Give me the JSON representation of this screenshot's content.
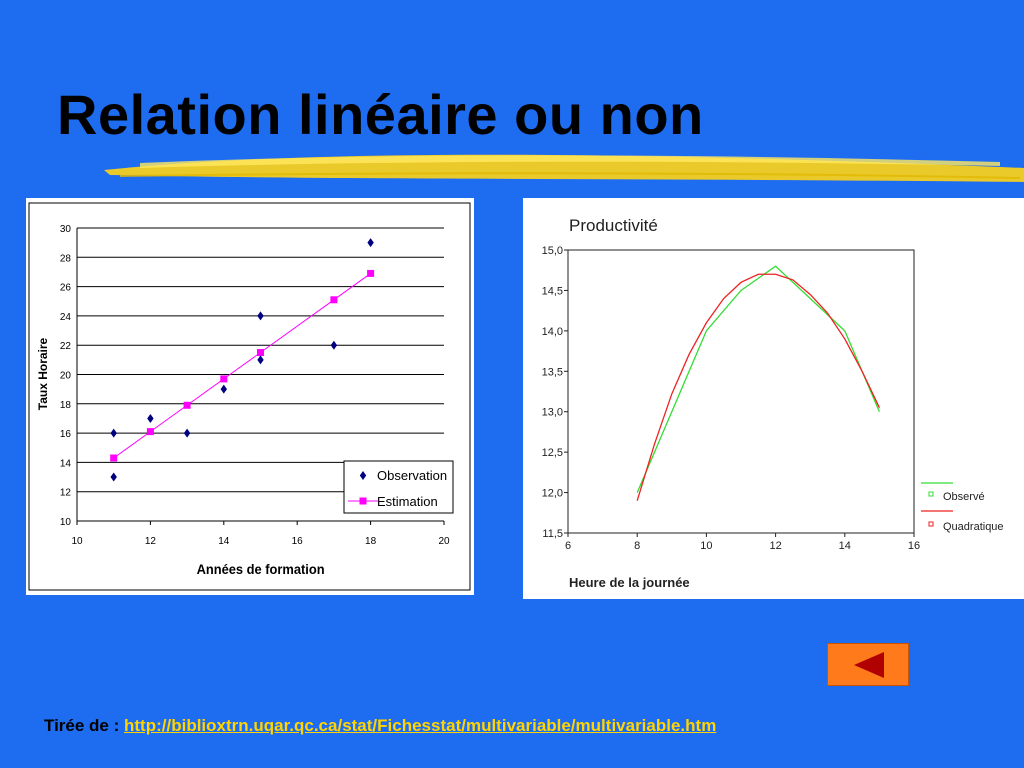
{
  "slide": {
    "title": "Relation linéaire ou non",
    "source_label": "Tirée de :",
    "source_url": "http://biblioxtrn.uqar.qc.ca/stat/Fichesstat/multivariable/multivariable.htm"
  },
  "colors": {
    "background": "#1e6cf0",
    "highlight": "#f5d020",
    "observation": "#000080",
    "estimation": "#ff00ff",
    "observe": "#33dd33",
    "quadratique": "#ee2222",
    "back_button": "#ff7a1a",
    "back_arrow": "#b00000"
  },
  "back_button_icon": "left-triangle-icon",
  "chart_data": [
    {
      "type": "scatter",
      "title": "",
      "xlabel": "Années de formation",
      "ylabel": "Taux Horaire",
      "xlim": [
        10,
        20
      ],
      "ylim": [
        10,
        30
      ],
      "xticks": [
        "10",
        "12",
        "14",
        "16",
        "18",
        "20"
      ],
      "yticks": [
        "10",
        "12",
        "14",
        "16",
        "18",
        "20",
        "22",
        "24",
        "26",
        "28",
        "30"
      ],
      "grid": "horizontal",
      "legend": "bottom-right",
      "series": [
        {
          "name": "Observation",
          "marker": "diamond",
          "points": [
            [
              11,
              16
            ],
            [
              11,
              13
            ],
            [
              12,
              17
            ],
            [
              13,
              16
            ],
            [
              14,
              19
            ],
            [
              15,
              24
            ],
            [
              15,
              21
            ],
            [
              17,
              22
            ],
            [
              18,
              29
            ]
          ]
        },
        {
          "name": "Estimation",
          "marker": "square",
          "line": true,
          "points": [
            [
              11,
              14.3
            ],
            [
              12,
              16.1
            ],
            [
              13,
              17.9
            ],
            [
              14,
              19.7
            ],
            [
              15,
              21.5
            ],
            [
              17,
              25.1
            ],
            [
              18,
              26.9
            ]
          ]
        }
      ]
    },
    {
      "type": "line",
      "title": "Productivité",
      "xlabel": "Heure de la journée",
      "ylabel": "",
      "xlim": [
        6,
        16
      ],
      "ylim": [
        11.5,
        15.0
      ],
      "xticks": [
        "6",
        "8",
        "10",
        "12",
        "14",
        "16"
      ],
      "yticks": [
        "11,5",
        "12,0",
        "12,5",
        "13,0",
        "13,5",
        "14,0",
        "14,5",
        "15,0"
      ],
      "grid": "none",
      "legend": "right",
      "series": [
        {
          "name": "Observé",
          "x": [
            8,
            9,
            10,
            11,
            12,
            13,
            14,
            15
          ],
          "y": [
            12.0,
            13.0,
            14.0,
            14.5,
            14.8,
            14.4,
            14.0,
            13.0
          ]
        },
        {
          "name": "Quadratique",
          "x": [
            8,
            8.5,
            9,
            9.5,
            10,
            10.5,
            11,
            11.5,
            12,
            12.5,
            13,
            13.5,
            14,
            14.5,
            15
          ],
          "y": [
            11.9,
            12.6,
            13.22,
            13.71,
            14.1,
            14.4,
            14.6,
            14.7,
            14.7,
            14.63,
            14.45,
            14.22,
            13.9,
            13.5,
            13.05
          ]
        }
      ]
    }
  ]
}
